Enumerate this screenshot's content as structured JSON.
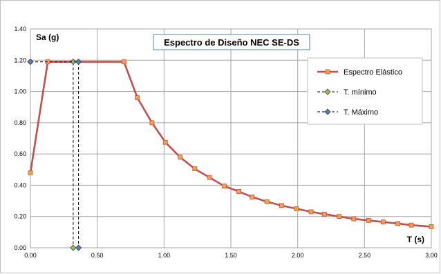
{
  "chart_data": {
    "type": "line",
    "title": "Espectro de Diseño  NEC SE-DS",
    "xlabel": "T (s)",
    "ylabel": "Sa (g)",
    "xlim": [
      0,
      3
    ],
    "ylim": [
      0,
      1.4
    ],
    "x_ticks": [
      "0.00",
      "0.50",
      "1.00",
      "1.50",
      "2.00",
      "2.50",
      "3.00"
    ],
    "y_ticks": [
      "0.00",
      "0.20",
      "0.40",
      "0.60",
      "0.80",
      "1.00",
      "1.20",
      "1.40"
    ],
    "grid": true,
    "legend_position": "right",
    "series": [
      {
        "name": "Espectro Elástico",
        "color": "#c0504d",
        "marker": "square",
        "marker_color": "#f7a23c",
        "points": [
          [
            0.0,
            0.48
          ],
          [
            0.13,
            1.19
          ],
          [
            0.7,
            1.19
          ],
          [
            0.8,
            0.96
          ],
          [
            0.91,
            0.8
          ],
          [
            1.01,
            0.675
          ],
          [
            1.12,
            0.58
          ],
          [
            1.23,
            0.505
          ],
          [
            1.34,
            0.45
          ],
          [
            1.45,
            0.395
          ],
          [
            1.56,
            0.36
          ],
          [
            1.66,
            0.325
          ],
          [
            1.77,
            0.295
          ],
          [
            1.88,
            0.27
          ],
          [
            1.99,
            0.25
          ],
          [
            2.1,
            0.23
          ],
          [
            2.2,
            0.215
          ],
          [
            2.31,
            0.2
          ],
          [
            2.42,
            0.185
          ],
          [
            2.53,
            0.175
          ],
          [
            2.64,
            0.165
          ],
          [
            2.75,
            0.155
          ],
          [
            2.85,
            0.145
          ],
          [
            3.0,
            0.135
          ]
        ]
      },
      {
        "name": "T. mínimo",
        "color": "#000000",
        "dashed": true,
        "marker": "diamond",
        "marker_color": "#9bbb59",
        "points": [
          [
            0.0,
            1.19
          ],
          [
            0.32,
            1.19
          ],
          [
            0.32,
            0.0
          ]
        ]
      },
      {
        "name": "T. Máximo",
        "color": "#000000",
        "dashed": true,
        "marker": "diamond",
        "marker_color": "#4f81bd",
        "points": [
          [
            0.0,
            1.19
          ],
          [
            0.36,
            1.19
          ],
          [
            0.36,
            0.0
          ]
        ]
      }
    ]
  }
}
